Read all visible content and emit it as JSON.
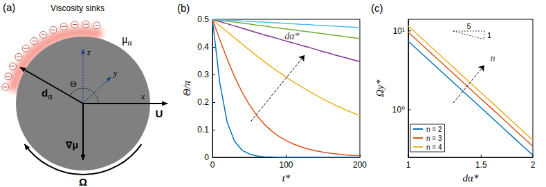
{
  "panel_a": {
    "label": "(a)",
    "title": "Viscosity sinks",
    "viscosity": "μα",
    "distance": "dα",
    "x": "x",
    "y": "y",
    "z": "z",
    "angle": "Θ",
    "velocity": "U",
    "gradient": "∇μ",
    "rotation": "Ω"
  },
  "chart_data": [
    {
      "label": "(b)",
      "type": "line",
      "x_label": "t*",
      "y_label": "Θ/π",
      "x": [
        0,
        10,
        20,
        30,
        40,
        50,
        60,
        70,
        80,
        90,
        100,
        110,
        120,
        130,
        140,
        150,
        160,
        170,
        180,
        190,
        200
      ],
      "xlim": [
        0,
        200
      ],
      "xticks": [
        0,
        100,
        200
      ],
      "ylim": [
        0,
        0.5
      ],
      "yticks": [
        0,
        0.1,
        0.2,
        0.3,
        0.4,
        0.5
      ],
      "series": [
        {
          "color": "#0072bd",
          "values": [
            0.5,
            0.269,
            0.127,
            0.058,
            0.026,
            0.012,
            0.005,
            0.002,
            0.001,
            0,
            0,
            0,
            0,
            0,
            0,
            0,
            0,
            0,
            0,
            0,
            0
          ]
        },
        {
          "color": "#d95319",
          "values": [
            0.5,
            0.426,
            0.356,
            0.292,
            0.237,
            0.191,
            0.152,
            0.121,
            0.096,
            0.076,
            0.061,
            0.048,
            0.038,
            0.03,
            0.024,
            0.019,
            0.015,
            0.012,
            0.009,
            0.007,
            0.006
          ]
        },
        {
          "color": "#edb120",
          "values": [
            0.5,
            0.477,
            0.455,
            0.433,
            0.411,
            0.389,
            0.368,
            0.348,
            0.328,
            0.309,
            0.291,
            0.273,
            0.257,
            0.241,
            0.226,
            0.211,
            0.198,
            0.185,
            0.173,
            0.162,
            0.151
          ]
        },
        {
          "color": "#7e2f8e",
          "values": [
            0.5,
            0.492,
            0.484,
            0.476,
            0.468,
            0.46,
            0.452,
            0.444,
            0.437,
            0.429,
            0.421,
            0.414,
            0.406,
            0.399,
            0.391,
            0.383,
            0.376,
            0.368,
            0.361,
            0.354,
            0.347
          ]
        },
        {
          "color": "#77ac30",
          "values": [
            0.5,
            0.497,
            0.493,
            0.49,
            0.486,
            0.483,
            0.479,
            0.476,
            0.472,
            0.469,
            0.465,
            0.462,
            0.458,
            0.455,
            0.451,
            0.448,
            0.444,
            0.441,
            0.437,
            0.434,
            0.43
          ]
        },
        {
          "color": "#4dbeee",
          "values": [
            0.5,
            0.499,
            0.497,
            0.496,
            0.494,
            0.493,
            0.491,
            0.49,
            0.488,
            0.487,
            0.485,
            0.484,
            0.482,
            0.481,
            0.479,
            0.478,
            0.476,
            0.475,
            0.473,
            0.472,
            0.47
          ]
        }
      ],
      "annotations": [
        {
          "text": "dα*",
          "x": 108,
          "y": 0.44,
          "arrow_from": [
            52,
            0.13
          ],
          "arrow_to": [
            125,
            0.37
          ]
        }
      ]
    },
    {
      "label": "(c)",
      "type": "line",
      "log": true,
      "x_label": "dα*",
      "y_label": "Ωy*",
      "x": [
        1,
        1.1,
        1.2,
        1.3,
        1.4,
        1.5,
        1.6,
        1.7,
        1.8,
        1.9,
        2
      ],
      "xlim": [
        1,
        2
      ],
      "xticks": [
        1,
        1.5,
        2
      ],
      "ylim": [
        0.25,
        14
      ],
      "yticks": [
        {
          "value": 1,
          "label": "10⁰"
        },
        {
          "value": 10,
          "label": "10¹"
        }
      ],
      "series": [
        {
          "name": "n = 2",
          "color": "#0072bd",
          "values": [
            7.4,
            4.68,
            3.08,
            2.1,
            1.47,
            1.06,
            0.776,
            0.579,
            0.44,
            0.34,
            0.266
          ]
        },
        {
          "name": "n = 3",
          "color": "#d95319",
          "values": [
            9.6,
            6.08,
            4.0,
            2.73,
            1.91,
            1.37,
            1.01,
            0.752,
            0.571,
            0.441,
            0.345
          ]
        },
        {
          "name": "n = 4",
          "color": "#edb120",
          "values": [
            11.5,
            7.28,
            4.79,
            3.26,
            2.29,
            1.64,
            1.21,
            0.9,
            0.684,
            0.528,
            0.413
          ]
        }
      ],
      "legend": "lower left",
      "slope_labels": [
        "5",
        "1"
      ],
      "annotations": [
        {
          "text": "n",
          "x": 1.6,
          "y": 4.5,
          "arrow_from": [
            1.284,
            1.22
          ],
          "arrow_to": [
            1.527,
            3.67
          ]
        }
      ]
    }
  ]
}
